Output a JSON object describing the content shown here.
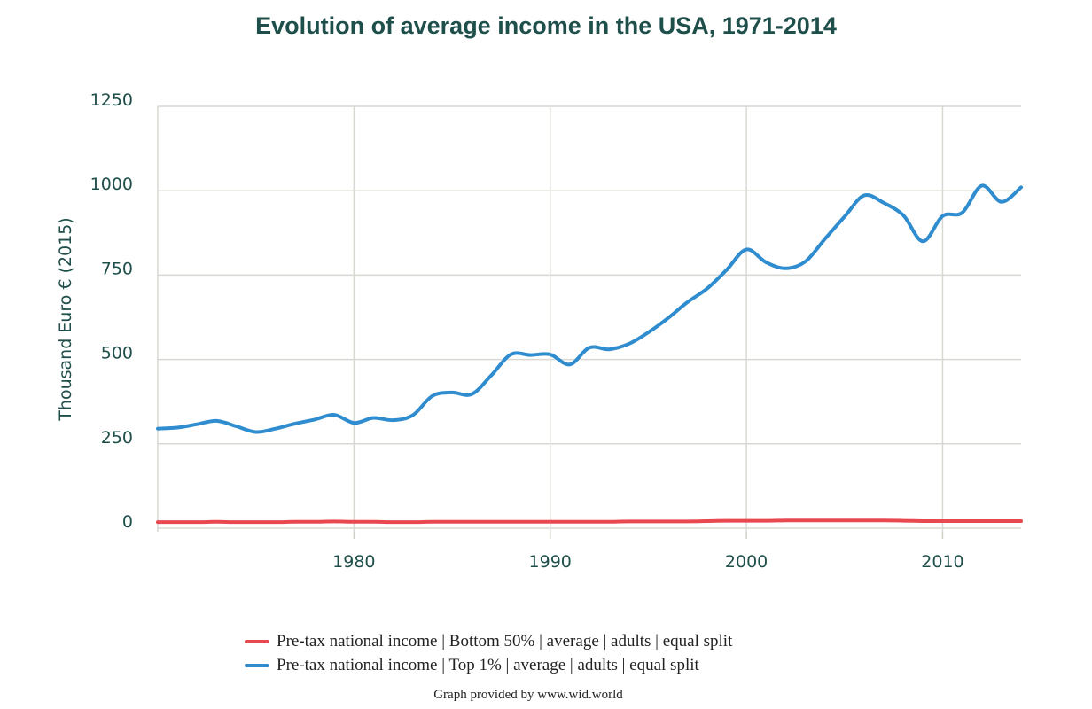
{
  "chart_data": {
    "type": "line",
    "title": "Evolution of average income in the USA, 1971-2014",
    "ylabel": "Thousand Euro € (2015)",
    "xlabel": "",
    "xlim": [
      1970,
      2014
    ],
    "ylim": [
      0,
      1250
    ],
    "yticks": [
      0,
      250,
      500,
      750,
      1000,
      1250
    ],
    "xticks": [
      1980,
      1990,
      2000,
      2010
    ],
    "grid": true,
    "legend_position": "bottom",
    "x": [
      1970,
      1971,
      1972,
      1973,
      1974,
      1975,
      1976,
      1977,
      1978,
      1979,
      1980,
      1981,
      1982,
      1983,
      1984,
      1985,
      1986,
      1987,
      1988,
      1989,
      1990,
      1991,
      1992,
      1993,
      1994,
      1995,
      1996,
      1997,
      1998,
      1999,
      2000,
      2001,
      2002,
      2003,
      2004,
      2005,
      2006,
      2007,
      2008,
      2009,
      2010,
      2011,
      2012,
      2013,
      2014
    ],
    "series": [
      {
        "name": "Pre-tax national income | Bottom 50% | average | adults | equal split",
        "color": "#e8484f",
        "values": [
          18,
          18,
          18,
          19,
          18,
          18,
          18,
          19,
          19,
          20,
          19,
          19,
          18,
          18,
          19,
          19,
          19,
          19,
          19,
          19,
          19,
          19,
          19,
          19,
          20,
          20,
          20,
          20,
          21,
          22,
          22,
          22,
          23,
          23,
          23,
          23,
          23,
          23,
          22,
          21,
          21,
          21,
          21,
          21,
          21
        ]
      },
      {
        "name": "Pre-tax national income | Top 1% | average | adults | equal split",
        "color": "#2e8ccf",
        "values": [
          295,
          298,
          308,
          318,
          302,
          285,
          295,
          310,
          322,
          336,
          312,
          327,
          320,
          335,
          392,
          402,
          397,
          453,
          515,
          513,
          515,
          485,
          535,
          530,
          546,
          580,
          622,
          670,
          710,
          766,
          826,
          788,
          770,
          790,
          857,
          923,
          986,
          964,
          927,
          850,
          925,
          935,
          1015,
          967,
          1010
        ]
      }
    ]
  },
  "credit": "Graph provided by www.wid.world"
}
